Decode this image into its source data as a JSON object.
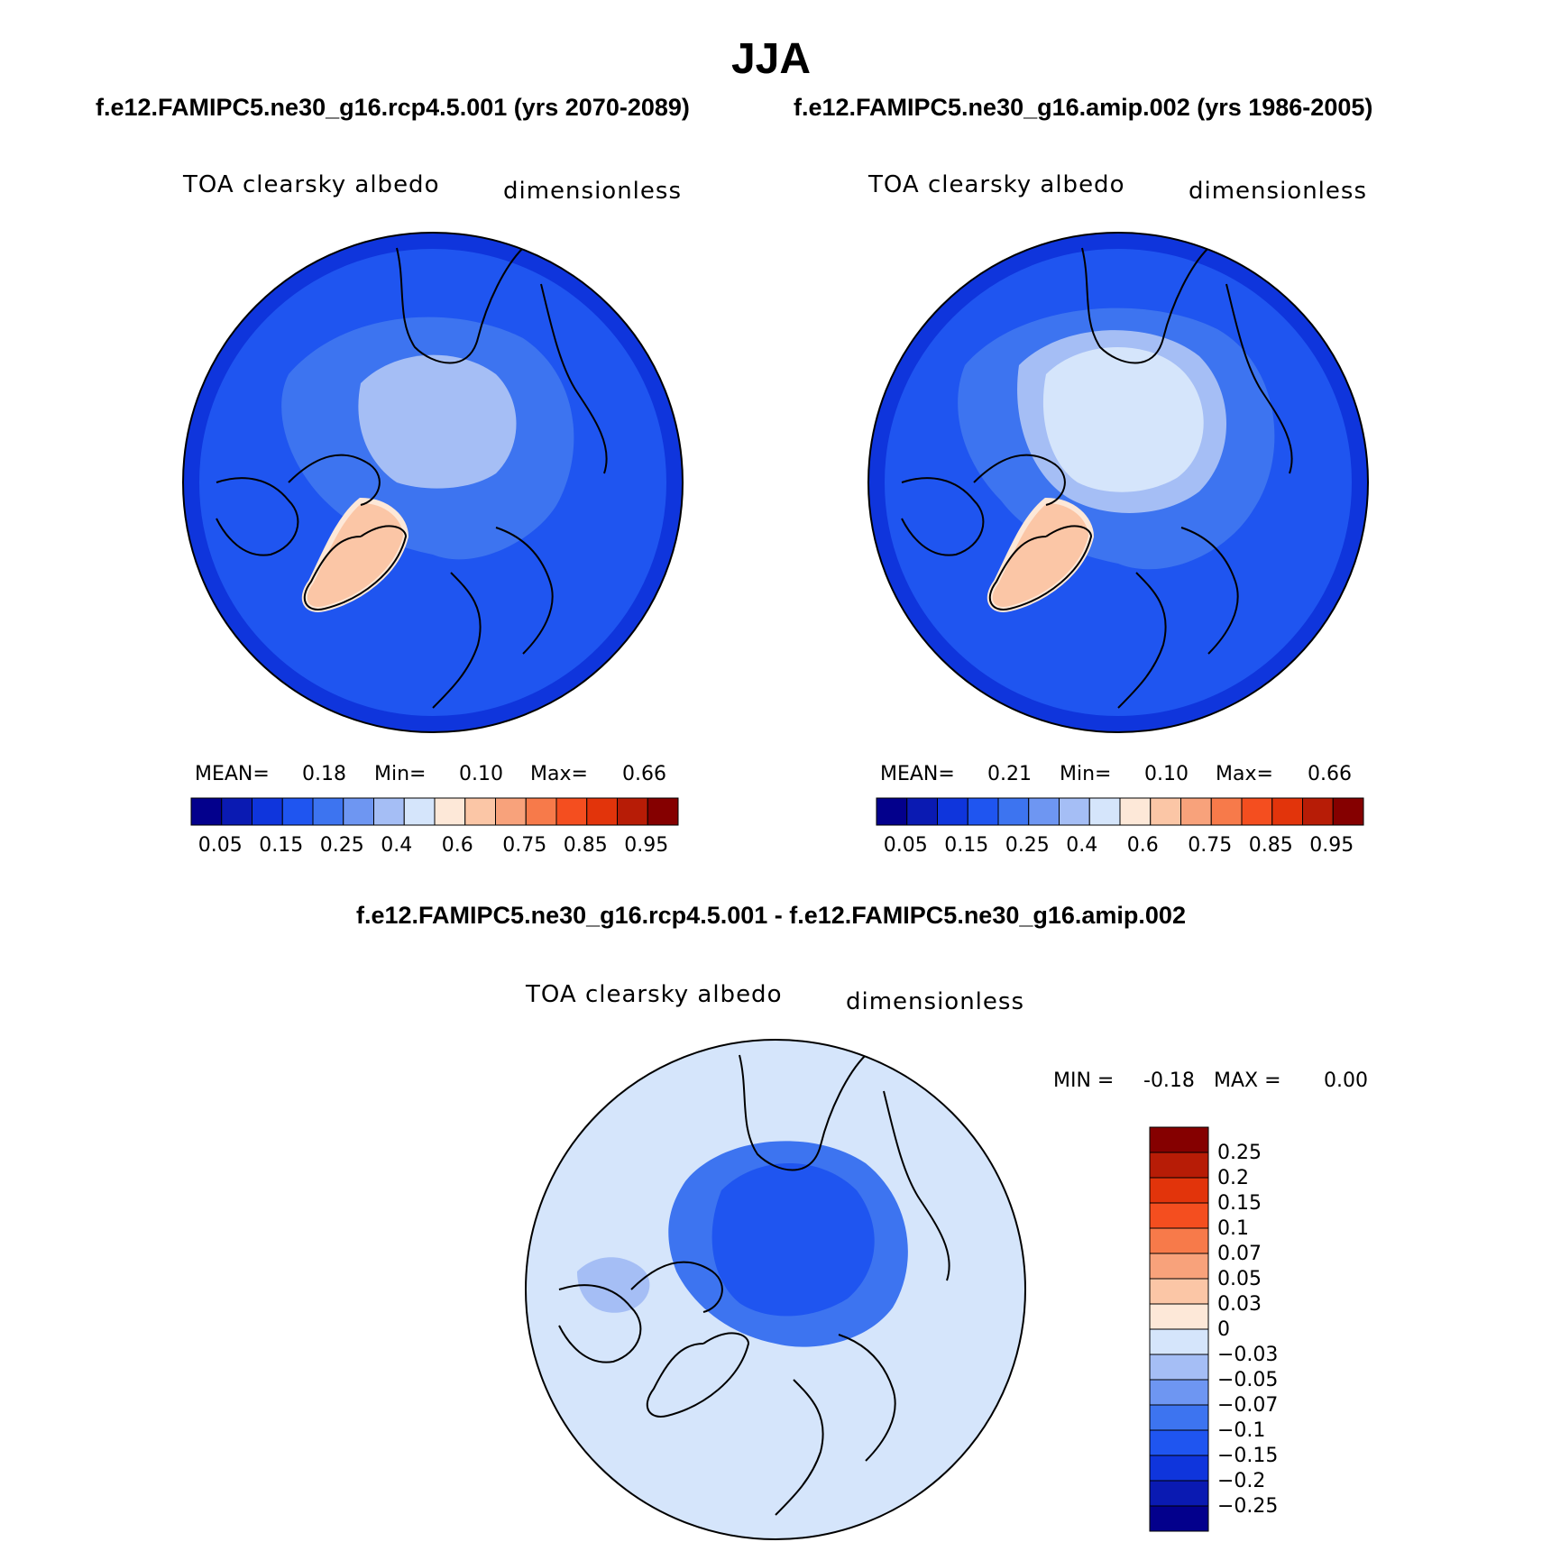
{
  "figure": {
    "season": "JJA",
    "case_left": "f.e12.FAMIPC5.ne30_g16.rcp4.5.001 (yrs 2070-2089)",
    "case_right": "f.e12.FAMIPC5.ne30_g16.amip.002 (yrs 1986-2005)",
    "diff_title": "f.e12.FAMIPC5.ne30_g16.rcp4.5.001 - f.e12.FAMIPC5.ne30_g16.amip.002"
  },
  "panels": [
    {
      "variable": "TOA clearsky albedo",
      "units": "dimensionless",
      "stats": {
        "mean_label": "MEAN=",
        "mean": "0.18",
        "min_label": "Min=",
        "min": "0.10",
        "max_label": "Max=",
        "max": "0.66"
      }
    },
    {
      "variable": "TOA clearsky albedo",
      "units": "dimensionless",
      "stats": {
        "mean_label": "MEAN=",
        "mean": "0.21",
        "min_label": "Min=",
        "min": "0.10",
        "max_label": "Max=",
        "max": "0.66"
      }
    }
  ],
  "colorbar_abs": {
    "colors": [
      "#03008c",
      "#0a1ab2",
      "#0f35dc",
      "#1f55f0",
      "#3d74f0",
      "#6e96f2",
      "#a5bef5",
      "#d5e5fb",
      "#fde8d8",
      "#fbc6a6",
      "#f8a27b",
      "#f77a4a",
      "#f44e1f",
      "#e2340b",
      "#b71c06",
      "#850000"
    ],
    "labels": [
      "0.05",
      "0.15",
      "0.25",
      "0.4",
      "0.6",
      "0.75",
      "0.85",
      "0.95"
    ]
  },
  "diff_panel": {
    "variable": "TOA clearsky albedo",
    "units": "dimensionless",
    "min_label": "MIN =",
    "min": "-0.18",
    "max_label": "MAX =",
    "max": "0.00"
  },
  "colorbar_diff": {
    "colors_top_to_bottom": [
      "#850000",
      "#b71c06",
      "#e2340b",
      "#f44e1f",
      "#f77a4a",
      "#f8a27b",
      "#fbc6a6",
      "#fde8d8",
      "#d5e5fb",
      "#a5bef5",
      "#6e96f2",
      "#3d74f0",
      "#1f55f0",
      "#0f35dc",
      "#0a1ab2",
      "#03008c"
    ],
    "labels": [
      "0.25",
      "0.2",
      "0.15",
      "0.1",
      "0.07",
      "0.05",
      "0.03",
      "0",
      "−0.03",
      "−0.05",
      "−0.07",
      "−0.1",
      "−0.15",
      "−0.2",
      "−0.25"
    ]
  },
  "map_colors": {
    "ocean_abs": "#1f55f0",
    "ring_outer": "#0f35dc",
    "ice_mid": "#3d74f0",
    "ice_high": "#a5bef5",
    "ice_top": "#d5e5fb",
    "greenland": "#fbc6a6",
    "diff_bg": "#d5e5fb",
    "diff_mid": "#3d74f0",
    "diff_core": "#1f55f0",
    "diff_light": "#a5bef5"
  }
}
